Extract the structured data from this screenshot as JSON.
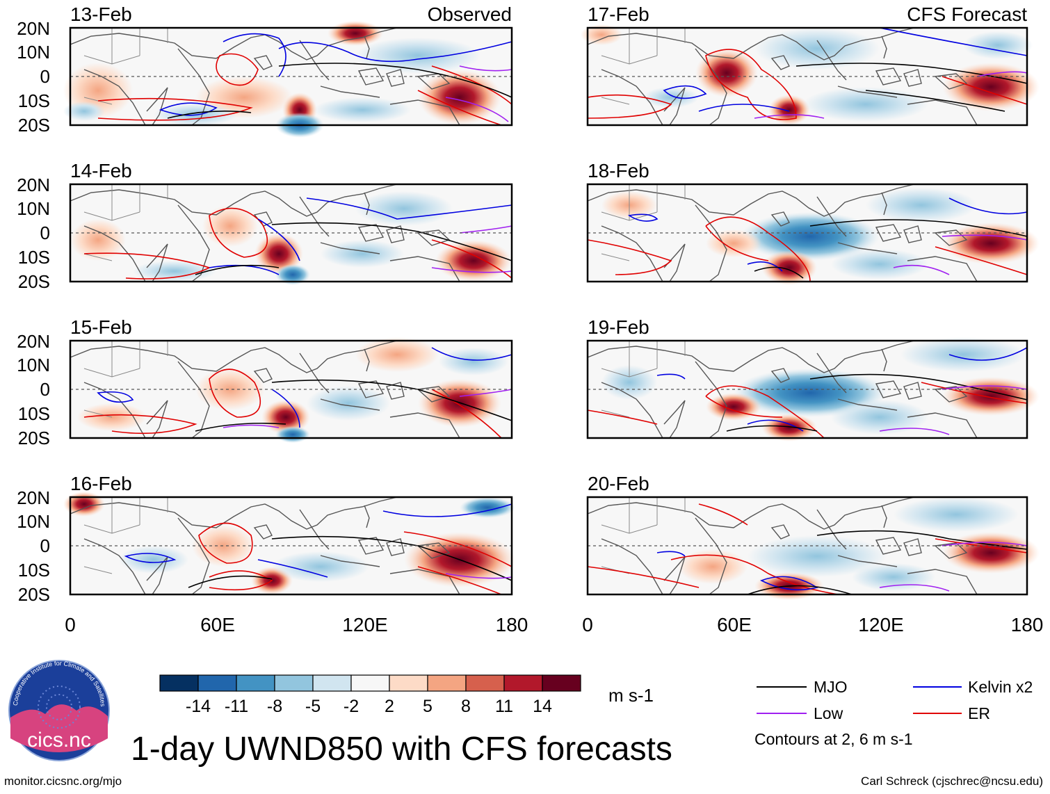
{
  "title": "1-day UWND850 with CFS forecasts",
  "footer_left": "monitor.cicsnc.org/mjo",
  "footer_right": "Carl Schreck (cjschrec@ncsu.edu)",
  "logo": {
    "text": "cics.nc",
    "arc_text": "Cooperative Institute for Climate and Satellites"
  },
  "columns": [
    {
      "label": "Observed",
      "panels": [
        "13-Feb",
        "14-Feb",
        "15-Feb",
        "16-Feb"
      ]
    },
    {
      "label": "CFS Forecast",
      "panels": [
        "17-Feb",
        "18-Feb",
        "19-Feb",
        "20-Feb"
      ]
    }
  ],
  "lat_labels": [
    "20N",
    "10N",
    "0",
    "10S",
    "20S"
  ],
  "lon_labels": [
    "0",
    "60E",
    "120E",
    "180"
  ],
  "colorbar": {
    "colors": [
      "#053061",
      "#2166ac",
      "#4393c3",
      "#92c5de",
      "#d1e5f0",
      "#f7f7f7",
      "#fddbc7",
      "#f4a582",
      "#d6604d",
      "#b2182b",
      "#67001f"
    ],
    "tick_labels": [
      "-14",
      "-11",
      "-8",
      "-5",
      "-2",
      "2",
      "5",
      "8",
      "11",
      "14"
    ],
    "units": "m s-1"
  },
  "legend": {
    "items": [
      {
        "name": "MJO",
        "color": "#000000"
      },
      {
        "name": "Kelvin x2",
        "color": "#0000e0"
      },
      {
        "name": "Low",
        "color": "#a020f0"
      },
      {
        "name": "ER",
        "color": "#e00000"
      }
    ],
    "note": "Contours at 2, 6 m s-1"
  }
}
